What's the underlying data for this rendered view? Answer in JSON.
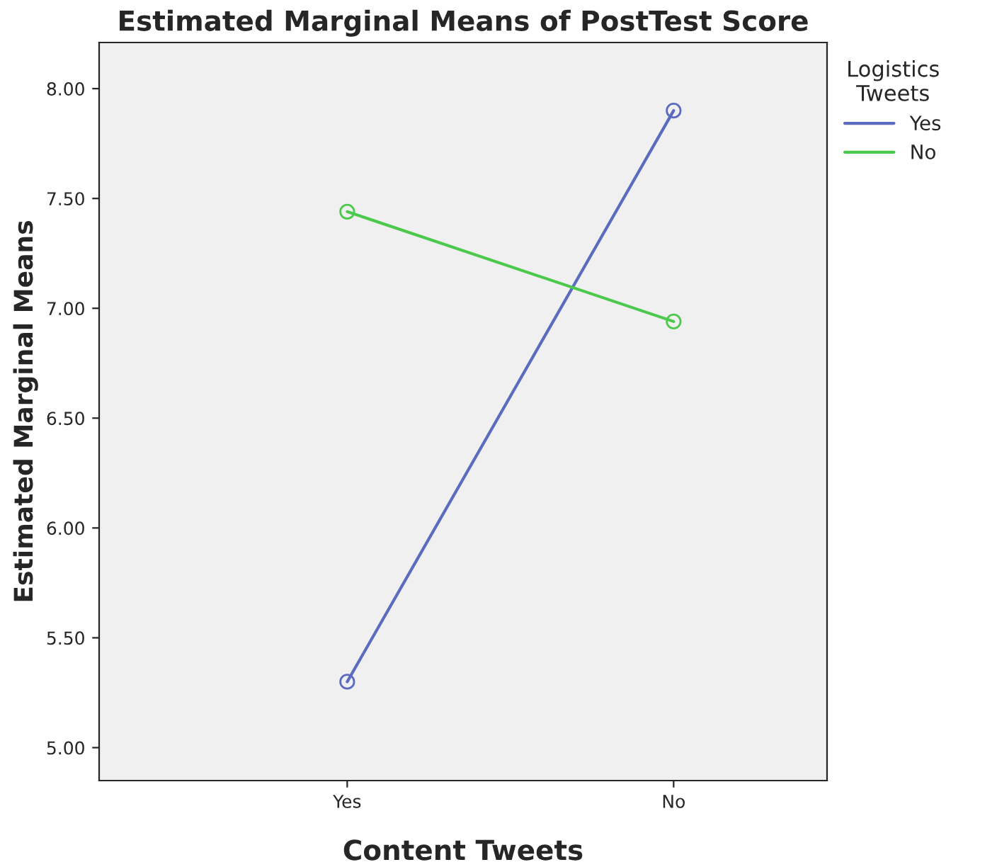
{
  "chart_data": {
    "type": "line",
    "title": "Estimated Marginal Means of PostTest Score",
    "xlabel": "Content Tweets",
    "ylabel": "Estimated Marginal Means",
    "legend_title": "Logistics\nTweets",
    "categories": [
      "Yes",
      "No"
    ],
    "series": [
      {
        "name": "Yes",
        "color": "#5b6cc0",
        "values": [
          5.3,
          7.9
        ]
      },
      {
        "name": "No",
        "color": "#4cc94c",
        "values": [
          7.44,
          6.94
        ]
      }
    ],
    "ylim": [
      4.85,
      8.21
    ],
    "yticks": [
      {
        "value": 5,
        "label": "5.00"
      },
      {
        "value": 5.5,
        "label": "5.50"
      },
      {
        "value": 6,
        "label": "6.00"
      },
      {
        "value": 6.5,
        "label": "6.50"
      },
      {
        "value": 7,
        "label": "7.00"
      },
      {
        "value": 7.5,
        "label": "7.50"
      },
      {
        "value": 8,
        "label": "8.00"
      }
    ],
    "grid": false,
    "legend": "top right",
    "marker": "circle",
    "line_style": "solid"
  }
}
